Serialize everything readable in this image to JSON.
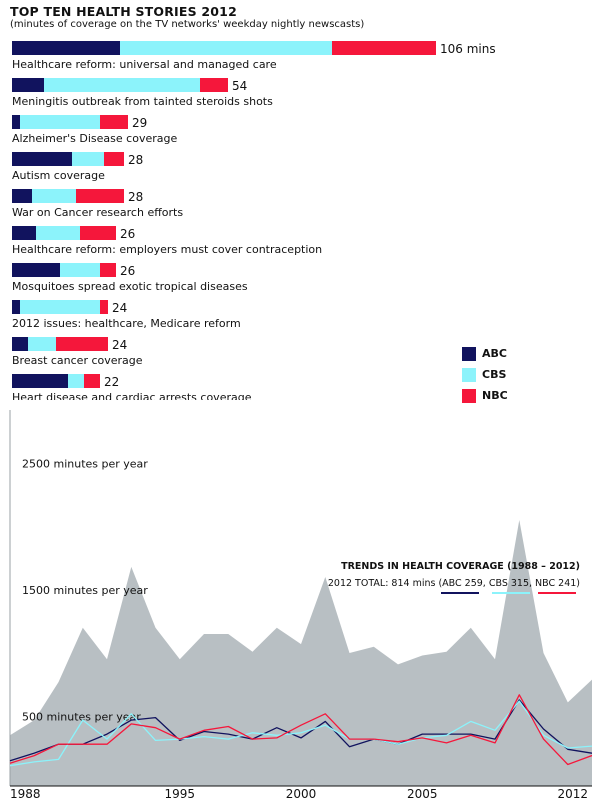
{
  "chart_data": [
    {
      "type": "bar",
      "stacked": true,
      "orientation": "horizontal",
      "title": "TOP TEN HEALTH STORIES 2012",
      "subtitle": "(minutes of coverage on the TV networks' weekday nightly newscasts)",
      "unit": "mins",
      "categories": [
        "Healthcare reform: universal and managed care",
        "Meningitis outbreak from tainted steroids shots",
        "Alzheimer's Disease coverage",
        "Autism coverage",
        "War on Cancer research efforts",
        "Healthcare reform: employers must cover contraception",
        "Mosquitoes spread exotic tropical diseases",
        "2012 issues: healthcare, Medicare reform",
        "Breast cancer coverage",
        "Heart disease and cardiac arrests coverage"
      ],
      "totals": [
        106,
        54,
        29,
        28,
        28,
        26,
        26,
        24,
        24,
        22
      ],
      "total_labels": [
        "106 mins",
        "54",
        "29",
        "28",
        "28",
        "26",
        "26",
        "24",
        "24",
        "22"
      ],
      "series": [
        {
          "name": "ABC",
          "color": "#11135e",
          "values": [
            27,
            8,
            2,
            15,
            5,
            6,
            12,
            2,
            4,
            14
          ]
        },
        {
          "name": "CBS",
          "color": "#8cf3fb",
          "values": [
            53,
            39,
            20,
            8,
            11,
            11,
            10,
            20,
            7,
            4
          ]
        },
        {
          "name": "NBC",
          "color": "#f5173b",
          "values": [
            26,
            7,
            7,
            5,
            12,
            9,
            4,
            2,
            13,
            4
          ]
        }
      ],
      "legend_position": "right"
    },
    {
      "type": "line",
      "title": "TRENDS IN HEALTH COVERAGE (1988 – 2012)",
      "subtitle": "2012 TOTAL: 814 mins (ABC 259, CBS 315, NBC 241)",
      "x": [
        1988,
        1989,
        1990,
        1991,
        1992,
        1993,
        1994,
        1995,
        1996,
        1997,
        1998,
        1999,
        2000,
        2001,
        2002,
        2003,
        2004,
        2005,
        2006,
        2007,
        2008,
        2009,
        2010,
        2011,
        2012
      ],
      "x_ticks": [
        "1988",
        "1995",
        "2000",
        "2005",
        "2012"
      ],
      "y_labels": [
        "2500 minutes per year",
        "1500 minutes per year",
        "500 minutes per year"
      ],
      "ylim": [
        0,
        3000
      ],
      "total_area": {
        "color": "#b8bfc3",
        "values": [
          400,
          520,
          820,
          1250,
          1000,
          1730,
          1250,
          1000,
          1200,
          1200,
          1060,
          1250,
          1120,
          1650,
          1050,
          1100,
          960,
          1030,
          1060,
          1250,
          1000,
          2100,
          1050,
          660,
          840
        ]
      },
      "series": [
        {
          "name": "ABC",
          "color": "#11135e",
          "values": [
            200,
            260,
            330,
            330,
            410,
            520,
            540,
            360,
            430,
            410,
            370,
            460,
            380,
            510,
            310,
            370,
            330,
            410,
            410,
            410,
            370,
            680,
            450,
            290,
            259
          ]
        },
        {
          "name": "CBS",
          "color": "#8cf3fb",
          "values": [
            160,
            190,
            210,
            520,
            370,
            570,
            360,
            370,
            390,
            370,
            420,
            400,
            420,
            480,
            370,
            370,
            330,
            380,
            400,
            510,
            440,
            670,
            400,
            300,
            315
          ]
        },
        {
          "name": "NBC",
          "color": "#f5173b",
          "values": [
            180,
            240,
            330,
            330,
            330,
            490,
            460,
            370,
            440,
            470,
            370,
            380,
            480,
            570,
            370,
            370,
            350,
            380,
            340,
            400,
            340,
            720,
            370,
            170,
            241
          ]
        }
      ]
    }
  ]
}
